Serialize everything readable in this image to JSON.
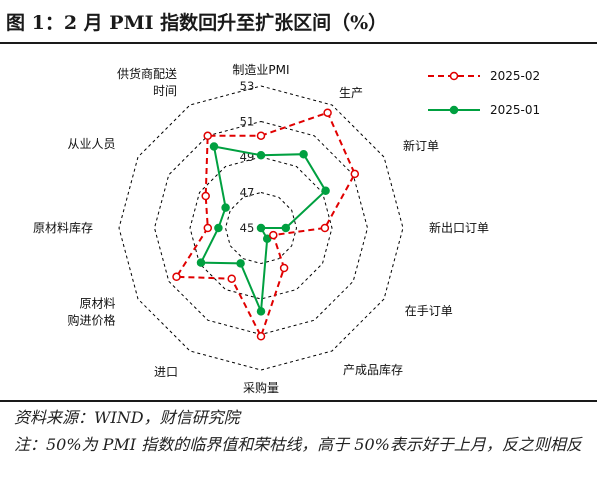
{
  "figure": {
    "title": "图 1：2 月 PMI 指数回升至扩张区间（%）",
    "source": "资料来源：WIND，财信研究院",
    "note": "注：50%为 PMI 指数的临界值和荣枯线，高于 50%表示好于上月，反之则相反"
  },
  "colors": {
    "grid": "#000000",
    "series_2025_02": "#e00000",
    "series_2025_01": "#00a040"
  },
  "chart_data": {
    "type": "radar",
    "axes": [
      [
        "制造业PMI"
      ],
      [
        "生产"
      ],
      [
        "新订单"
      ],
      [
        "新出口订单"
      ],
      [
        "在手订单"
      ],
      [
        "产成品库存"
      ],
      [
        "采购量"
      ],
      [
        "进口"
      ],
      [
        "原材料",
        "购进价格"
      ],
      [
        "原材料库存"
      ],
      [
        "从业人员"
      ],
      [
        "供货商配送",
        "时间"
      ]
    ],
    "rlim": [
      45,
      53
    ],
    "ticks": [
      "45",
      "47",
      "49",
      "51",
      "53"
    ],
    "grid": true,
    "legend_position": "top-right",
    "series": [
      {
        "name": "2025-02",
        "style": "dashed",
        "marker": "open-circle",
        "values": [
          50.2,
          52.5,
          51.1,
          48.6,
          45.8,
          47.6,
          51.1,
          48.3,
          50.5,
          48.0,
          48.6,
          51.0
        ]
      },
      {
        "name": "2025-01",
        "style": "solid",
        "marker": "filled-circle",
        "values": [
          49.1,
          49.8,
          49.2,
          46.4,
          44.6,
          45.7,
          49.7,
          47.3,
          48.9,
          47.4,
          47.3,
          50.3
        ]
      }
    ]
  }
}
